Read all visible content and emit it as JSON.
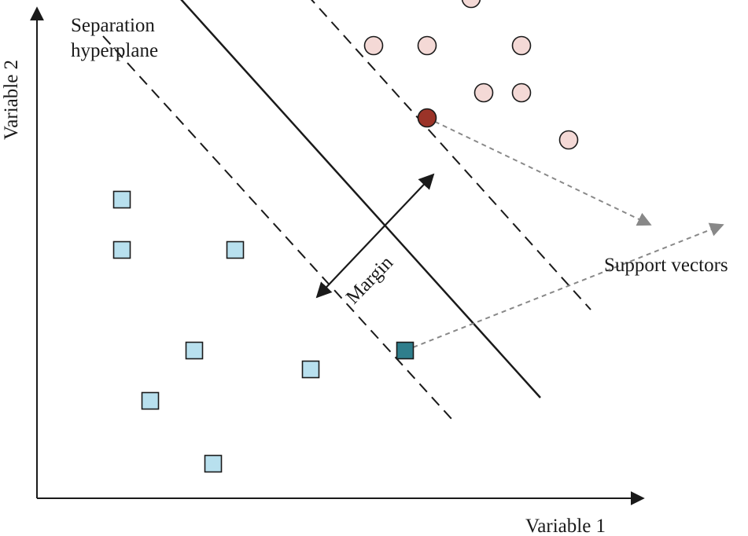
{
  "title": {
    "line1": "Separation",
    "line2": "hyperplane"
  },
  "axes": {
    "x_label": "Variable 1",
    "y_label": "Variable 2"
  },
  "annotations": {
    "margin": "Margin",
    "support_vectors": "Support vectors"
  },
  "colors": {
    "circle_fill": "#f4d9d6",
    "circle_sv_fill": "#9b3328",
    "square_fill": "#b8e0ee",
    "square_sv_fill": "#2f7e8c",
    "stroke": "#1a1a1a",
    "dashed_arrow": "#888888"
  },
  "classes": [
    {
      "name": "class-circles",
      "shape": "circle",
      "points": [
        {
          "x": 5.35,
          "y": 7.2,
          "support_vector": false
        },
        {
          "x": 6.2,
          "y": 7.2,
          "support_vector": false
        },
        {
          "x": 6.9,
          "y": 7.95,
          "support_vector": false
        },
        {
          "x": 7.7,
          "y": 7.2,
          "support_vector": false
        },
        {
          "x": 7.1,
          "y": 6.45,
          "support_vector": false
        },
        {
          "x": 7.7,
          "y": 6.45,
          "support_vector": false
        },
        {
          "x": 8.45,
          "y": 5.7,
          "support_vector": false
        },
        {
          "x": 6.2,
          "y": 6.05,
          "support_vector": true
        }
      ]
    },
    {
      "name": "class-squares",
      "shape": "square",
      "points": [
        {
          "x": 1.35,
          "y": 4.75,
          "support_vector": false
        },
        {
          "x": 1.35,
          "y": 3.95,
          "support_vector": false
        },
        {
          "x": 3.15,
          "y": 3.95,
          "support_vector": false
        },
        {
          "x": 2.5,
          "y": 2.35,
          "support_vector": false
        },
        {
          "x": 4.35,
          "y": 2.05,
          "support_vector": false
        },
        {
          "x": 1.8,
          "y": 1.55,
          "support_vector": false
        },
        {
          "x": 2.8,
          "y": 0.55,
          "support_vector": false
        },
        {
          "x": 5.85,
          "y": 2.35,
          "support_vector": true
        }
      ]
    }
  ],
  "lines": {
    "hyperplane": {
      "x1": 2.05,
      "y1": 8.2,
      "x2": 8.0,
      "y2": 1.6
    },
    "margin_upper": {
      "x1": 2.95,
      "y1": 9.5,
      "x2": 8.8,
      "y2": 3.0
    },
    "margin_lower": {
      "x1": 1.05,
      "y1": 7.35,
      "x2": 6.6,
      "y2": 1.25
    }
  },
  "margin_arrow": {
    "x1": 4.45,
    "y1": 3.2,
    "x2": 6.3,
    "y2": 5.15
  },
  "sv_pointers": [
    {
      "from_x": 6.2,
      "from_y": 6.05,
      "to_x": 9.75,
      "to_y": 4.35
    },
    {
      "from_x": 5.85,
      "from_y": 2.35,
      "to_x": 10.9,
      "to_y": 4.35
    }
  ]
}
